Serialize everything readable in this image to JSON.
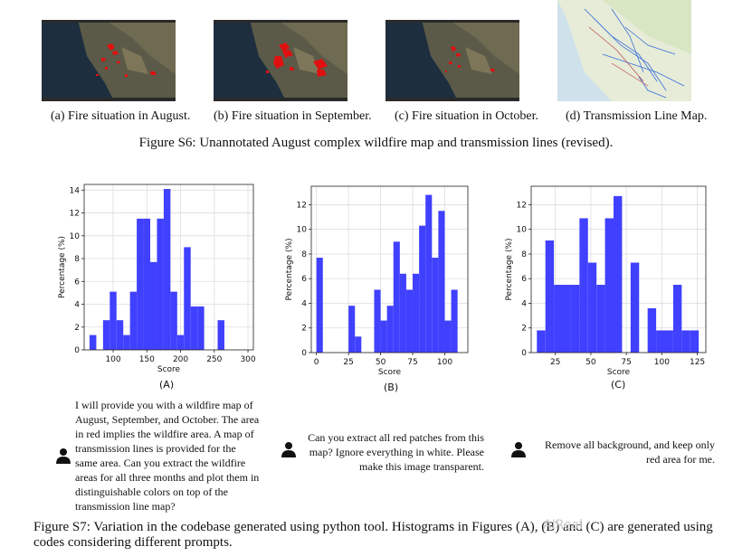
{
  "figure_s6": {
    "captions": {
      "a": "(a) Fire situation in August.",
      "b": "(b) Fire situation in September.",
      "c": "(c) Fire situation in October.",
      "d": "(d) Transmission Line Map."
    },
    "title": "Figure S6: Unannotated August complex wildfire map and transmission lines (revised)."
  },
  "chart_data": [
    {
      "type": "bar",
      "panel": "(A)",
      "xlabel": "Score",
      "ylabel": "Percentage (%)",
      "xlim": [
        57,
        308
      ],
      "ylim": [
        0,
        14.5
      ],
      "xticks": [
        100,
        150,
        200,
        250,
        300
      ],
      "yticks": [
        0,
        2,
        4,
        6,
        8,
        10,
        12,
        14
      ],
      "bars": [
        {
          "x0": 65,
          "x1": 75,
          "value": 1.3
        },
        {
          "x0": 85,
          "x1": 95,
          "value": 2.6
        },
        {
          "x0": 95,
          "x1": 105,
          "value": 5.1
        },
        {
          "x0": 105,
          "x1": 115,
          "value": 2.6
        },
        {
          "x0": 115,
          "x1": 125,
          "value": 1.3
        },
        {
          "x0": 125,
          "x1": 135,
          "value": 5.1
        },
        {
          "x0": 135,
          "x1": 145,
          "value": 11.5
        },
        {
          "x0": 145,
          "x1": 155,
          "value": 11.5
        },
        {
          "x0": 155,
          "x1": 165,
          "value": 7.7
        },
        {
          "x0": 165,
          "x1": 175,
          "value": 11.5
        },
        {
          "x0": 175,
          "x1": 185,
          "value": 14.1
        },
        {
          "x0": 185,
          "x1": 195,
          "value": 5.1
        },
        {
          "x0": 195,
          "x1": 205,
          "value": 1.3
        },
        {
          "x0": 205,
          "x1": 215,
          "value": 9.0
        },
        {
          "x0": 215,
          "x1": 225,
          "value": 3.8
        },
        {
          "x0": 225,
          "x1": 235,
          "value": 3.8
        },
        {
          "x0": 255,
          "x1": 265,
          "value": 2.6
        }
      ]
    },
    {
      "type": "bar",
      "panel": "(B)",
      "xlabel": "Score",
      "ylabel": "Percentage (%)",
      "xlim": [
        -4,
        118
      ],
      "ylim": [
        0,
        13.5
      ],
      "xticks": [
        0,
        25,
        50,
        75,
        100
      ],
      "yticks": [
        0,
        2,
        4,
        6,
        8,
        10,
        12
      ],
      "bars": [
        {
          "x0": 0,
          "x1": 5,
          "value": 7.7
        },
        {
          "x0": 25,
          "x1": 30,
          "value": 3.8
        },
        {
          "x0": 30,
          "x1": 35,
          "value": 1.3
        },
        {
          "x0": 45,
          "x1": 50,
          "value": 5.1
        },
        {
          "x0": 50,
          "x1": 55,
          "value": 2.6
        },
        {
          "x0": 55,
          "x1": 60,
          "value": 3.8
        },
        {
          "x0": 60,
          "x1": 65,
          "value": 9.0
        },
        {
          "x0": 65,
          "x1": 70,
          "value": 6.4
        },
        {
          "x0": 70,
          "x1": 75,
          "value": 5.1
        },
        {
          "x0": 75,
          "x1": 80,
          "value": 6.4
        },
        {
          "x0": 80,
          "x1": 85,
          "value": 10.3
        },
        {
          "x0": 85,
          "x1": 90,
          "value": 12.8
        },
        {
          "x0": 90,
          "x1": 95,
          "value": 7.7
        },
        {
          "x0": 95,
          "x1": 100,
          "value": 11.5
        },
        {
          "x0": 100,
          "x1": 105,
          "value": 2.6
        },
        {
          "x0": 105,
          "x1": 110,
          "value": 5.1
        }
      ]
    },
    {
      "type": "bar",
      "panel": "(C)",
      "xlabel": "Score",
      "ylabel": "Percentage (%)",
      "xlim": [
        8,
        131
      ],
      "ylim": [
        0,
        13.5
      ],
      "xticks": [
        25,
        50,
        75,
        100,
        125
      ],
      "yticks": [
        0,
        2,
        4,
        6,
        8,
        10,
        12
      ],
      "bars": [
        {
          "x0": 12,
          "x1": 18,
          "value": 1.8
        },
        {
          "x0": 18,
          "x1": 24,
          "value": 9.1
        },
        {
          "x0": 24,
          "x1": 30,
          "value": 5.5
        },
        {
          "x0": 30,
          "x1": 36,
          "value": 5.5
        },
        {
          "x0": 36,
          "x1": 42,
          "value": 5.5
        },
        {
          "x0": 42,
          "x1": 48,
          "value": 10.9
        },
        {
          "x0": 48,
          "x1": 54,
          "value": 7.3
        },
        {
          "x0": 54,
          "x1": 60,
          "value": 5.5
        },
        {
          "x0": 60,
          "x1": 66,
          "value": 10.9
        },
        {
          "x0": 66,
          "x1": 72,
          "value": 12.7
        },
        {
          "x0": 78,
          "x1": 84,
          "value": 7.3
        },
        {
          "x0": 90,
          "x1": 96,
          "value": 3.6
        },
        {
          "x0": 96,
          "x1": 102,
          "value": 1.8
        },
        {
          "x0": 102,
          "x1": 108,
          "value": 1.8
        },
        {
          "x0": 108,
          "x1": 114,
          "value": 5.5
        },
        {
          "x0": 114,
          "x1": 120,
          "value": 1.8
        },
        {
          "x0": 120,
          "x1": 126,
          "value": 1.8
        }
      ]
    }
  ],
  "prompts": {
    "a": "I will provide you with a wildfire map of August, September, and October. The area in red implies the wildfire area. A map of transmission lines is provided for the same area. Can you extract the wildfire areas for all three months and plot them in distinguishable colors on top of the transmission line map?",
    "b": "Can you extract all red patches from this map? Ignore everything in white. Please make this image transparent.",
    "c": "Remove all background, and keep only red area for me."
  },
  "figure_s7": {
    "caption": "Figure S7: Variation in the codebase generated using python tool. Histograms in Figures (A), (B) and (C) are generated using codes considering different prompts."
  },
  "watermark": "AIReal",
  "colors": {
    "bar": "#4040ff",
    "fire": "#e01010"
  }
}
